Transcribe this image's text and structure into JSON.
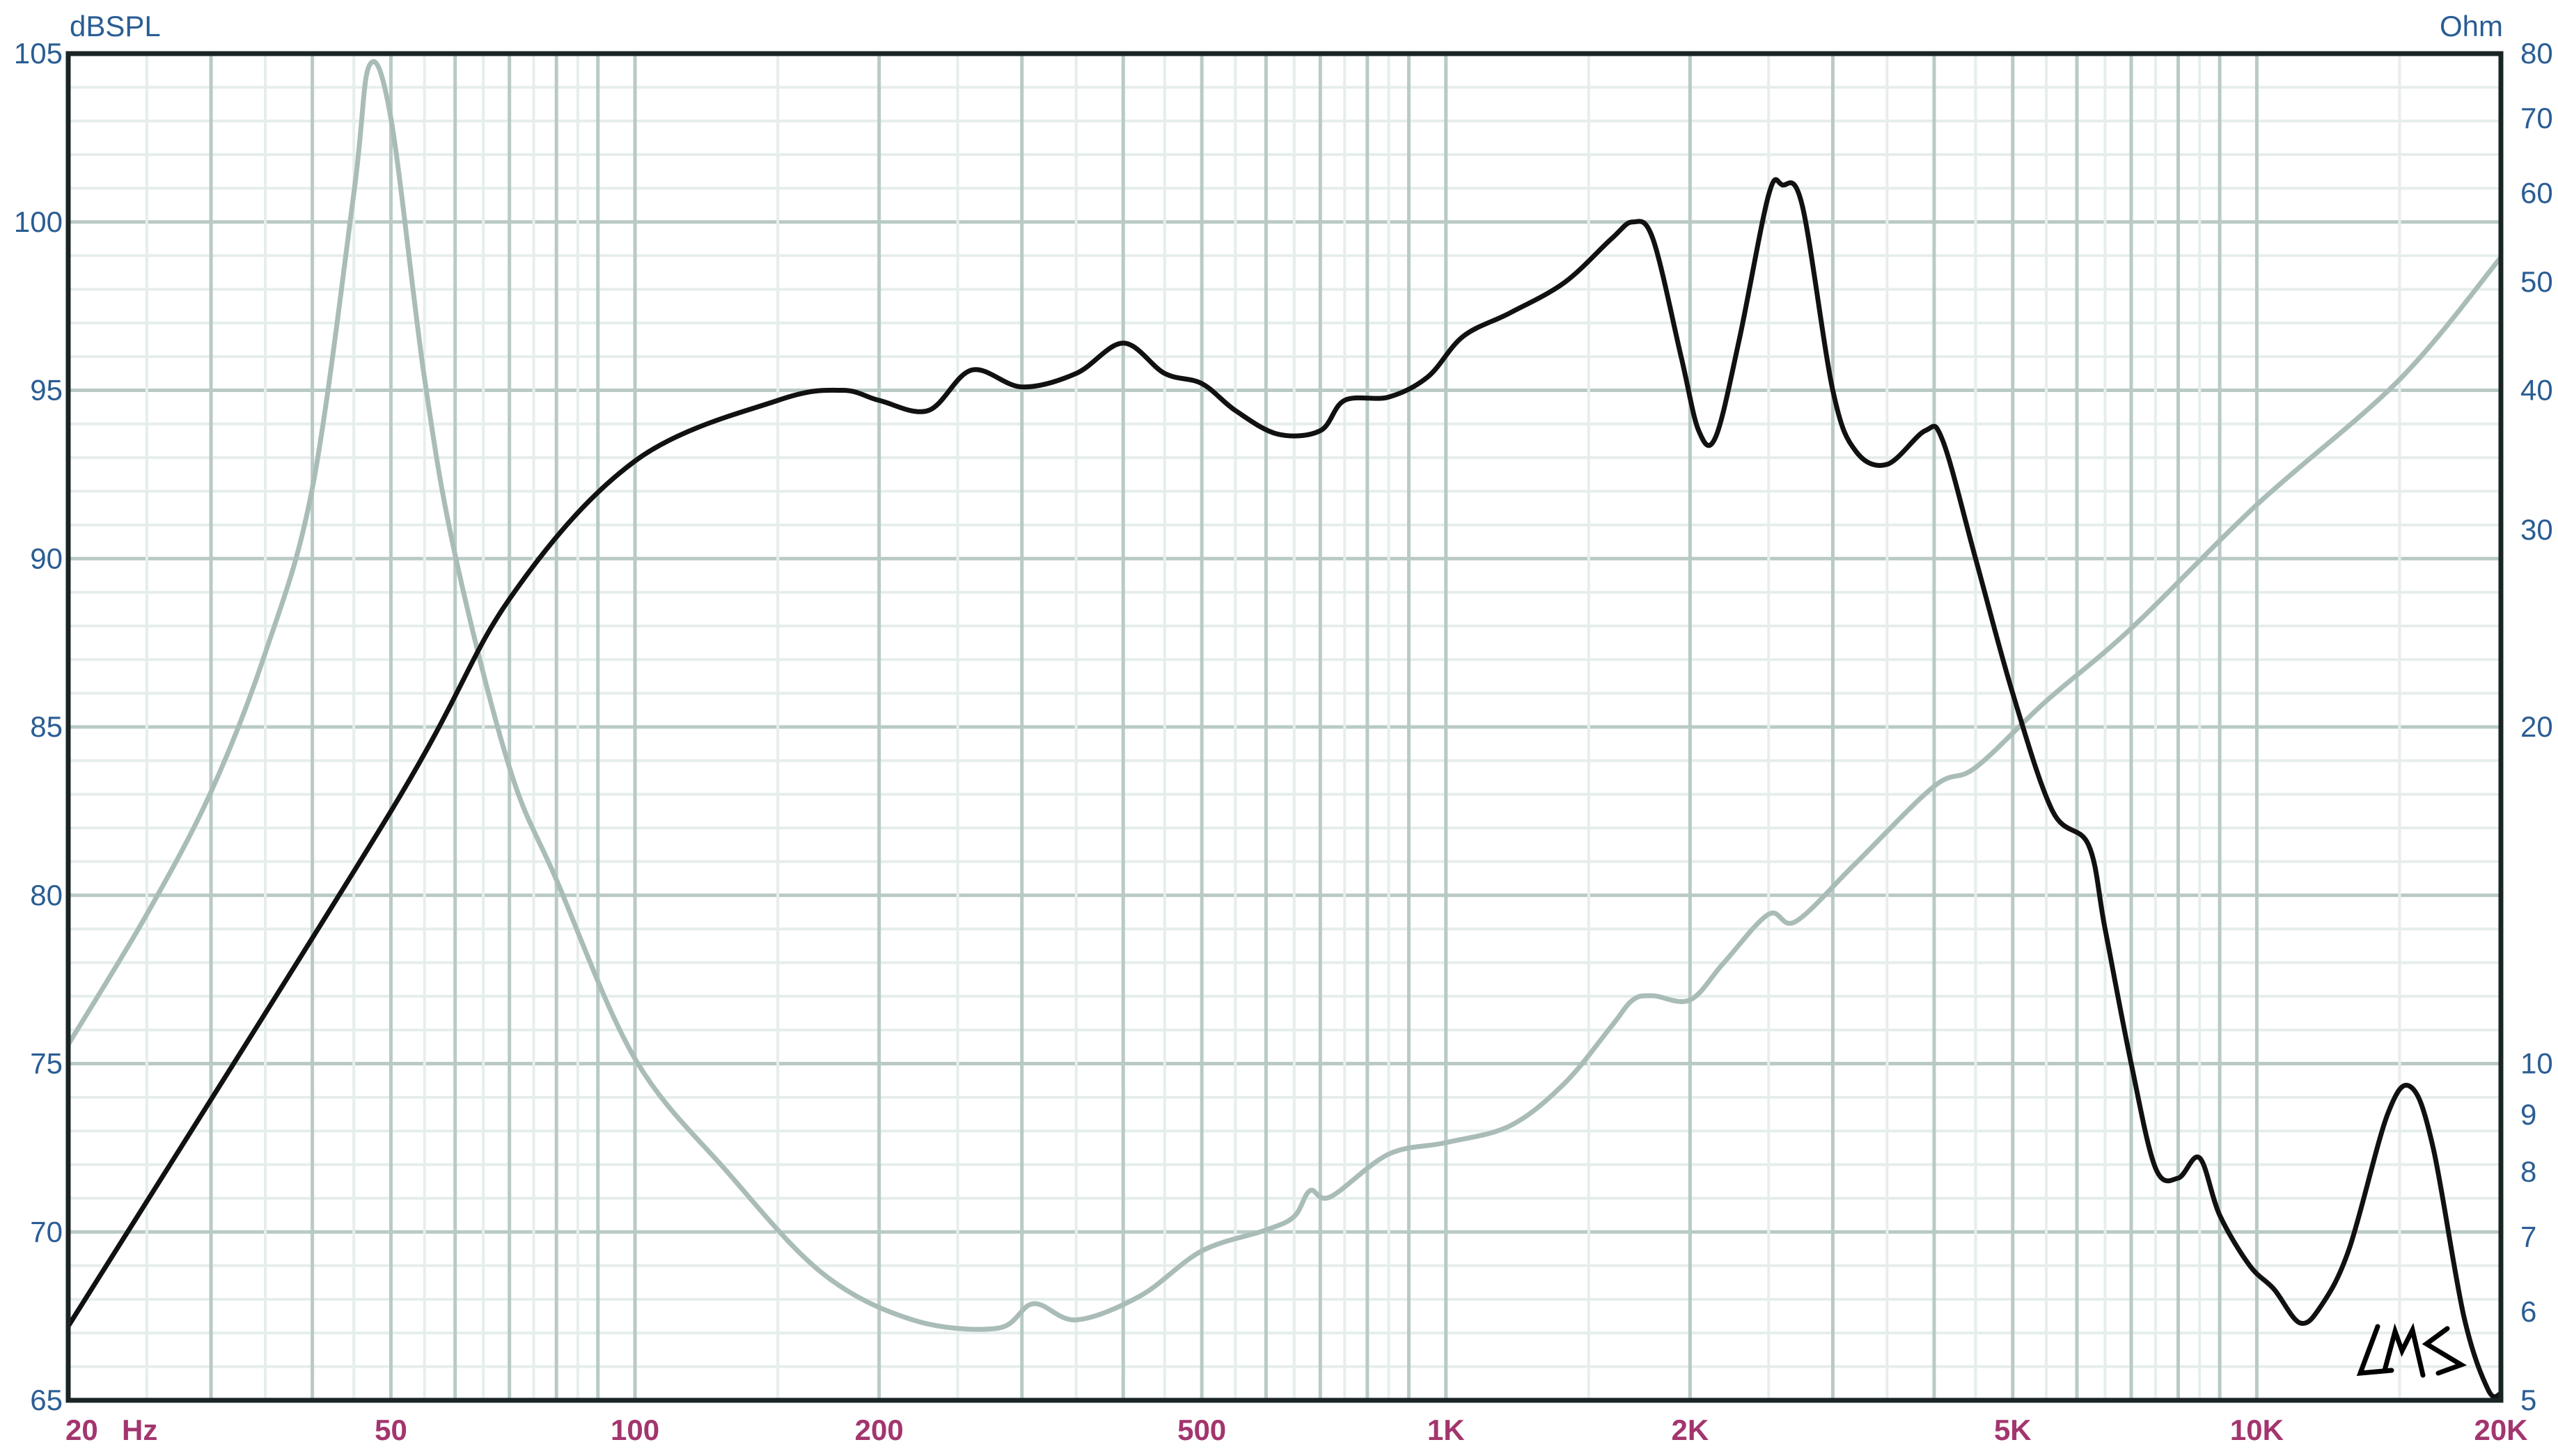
{
  "chart_data": {
    "type": "line",
    "title": "",
    "xlabel": "Hz",
    "ylabel": "dBSPL",
    "y2label": "Ohm",
    "x_scale": "log",
    "xlim": [
      20,
      20000
    ],
    "ylim": [
      65,
      105
    ],
    "y2_scale": "log",
    "y2lim": [
      5,
      80
    ],
    "grid": true,
    "x_ticks": [
      {
        "value": 20,
        "label": "20"
      },
      {
        "value": 50,
        "label": "50"
      },
      {
        "value": 100,
        "label": "100"
      },
      {
        "value": 200,
        "label": "200"
      },
      {
        "value": 500,
        "label": "500"
      },
      {
        "value": 1000,
        "label": "1K"
      },
      {
        "value": 2000,
        "label": "2K"
      },
      {
        "value": 5000,
        "label": "5K"
      },
      {
        "value": 10000,
        "label": "10K"
      },
      {
        "value": 20000,
        "label": "20K"
      }
    ],
    "y_ticks": [
      65,
      70,
      75,
      80,
      85,
      90,
      95,
      100,
      105
    ],
    "y2_ticks": [
      5,
      6,
      7,
      8,
      9,
      10,
      20,
      30,
      40,
      50,
      60,
      70,
      80
    ],
    "colors": {
      "spl": "#111111",
      "impedance": "#a9bcb8",
      "grid": "#b9cac6",
      "left_axis_text": "#2a5d94",
      "x_axis_text": "#a3356e"
    },
    "signature": "LMS",
    "series": [
      {
        "axis": "left",
        "x": [
          20,
          50,
          70,
          100,
          150,
          180,
          200,
          230,
          260,
          300,
          350,
          400,
          450,
          500,
          550,
          620,
          700,
          750,
          850,
          950,
          1050,
          1200,
          1400,
          1600,
          1700,
          1800,
          1950,
          2050,
          2150,
          2300,
          2500,
          2600,
          2750,
          3000,
          3200,
          3500,
          3900,
          4100,
          4500,
          5000,
          5600,
          6200,
          6500,
          7000,
          7500,
          8000,
          8500,
          9000,
          9800,
          10500,
          11300,
          12000,
          13000,
          14500,
          15500,
          16500,
          18000,
          19300,
          20000
        ],
        "y": [
          67.2,
          82.5,
          88.8,
          92.9,
          94.7,
          95.0,
          94.7,
          94.4,
          95.6,
          95.1,
          95.5,
          96.4,
          95.5,
          95.2,
          94.4,
          93.7,
          93.8,
          94.7,
          94.8,
          95.4,
          96.6,
          97.3,
          98.2,
          99.5,
          100.0,
          99.5,
          96.0,
          93.8,
          93.6,
          96.5,
          100.8,
          101.1,
          100.5,
          95.0,
          93.2,
          92.8,
          93.8,
          93.5,
          90.0,
          86.0,
          82.5,
          81.5,
          79.0,
          75.0,
          71.9,
          71.6,
          72.2,
          70.5,
          69.0,
          68.3,
          67.3,
          67.8,
          69.5,
          73.5,
          74.3,
          72.5,
          67.5,
          65.3,
          65.2
        ]
      },
      {
        "axis": "right",
        "x": [
          20,
          25,
          30,
          35,
          40,
          45,
          47,
          50,
          55,
          60,
          70,
          80,
          100,
          130,
          170,
          220,
          280,
          310,
          350,
          420,
          500,
          600,
          650,
          680,
          720,
          850,
          1000,
          1200,
          1400,
          1600,
          1700,
          1800,
          2000,
          2200,
          2500,
          2700,
          3200,
          4000,
          4500,
          5500,
          7000,
          10000,
          15000,
          20000
        ],
        "y": [
          10.4,
          13.6,
          17.5,
          23.3,
          32.7,
          60,
          78,
          70,
          41,
          28.5,
          18.4,
          14.6,
          10.1,
          8.0,
          6.5,
          5.9,
          5.8,
          6.1,
          5.9,
          6.2,
          6.8,
          7.1,
          7.3,
          7.7,
          7.6,
          8.3,
          8.5,
          8.8,
          9.6,
          10.8,
          11.4,
          11.5,
          11.4,
          12.3,
          13.6,
          13.4,
          15.1,
          17.7,
          18.4,
          21.1,
          24.5,
          31.6,
          40.9,
          52.6
        ]
      }
    ]
  }
}
